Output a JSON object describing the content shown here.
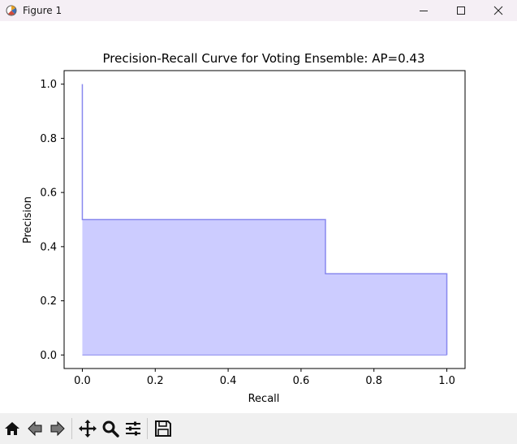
{
  "window": {
    "title": "Figure 1",
    "icons": [
      "matplotlib-icon",
      "minimize-icon",
      "maximize-icon",
      "close-icon"
    ]
  },
  "toolbar": {
    "icons": [
      "home-icon",
      "back-icon",
      "forward-icon",
      "pan-icon",
      "zoom-icon",
      "configure-subplots-icon",
      "save-icon"
    ]
  },
  "colors": {
    "fill": "#ccccff",
    "line": "#8888ee",
    "titlebar": "#f5eff5",
    "toolbar": "#f0f0f0"
  },
  "chart_data": {
    "type": "area",
    "title": "Precision-Recall Curve for Voting Ensemble: AP=0.43",
    "xlabel": "Recall",
    "ylabel": "Precision",
    "xlim": [
      -0.05,
      1.05
    ],
    "ylim": [
      -0.05,
      1.05
    ],
    "xticks": [
      0.0,
      0.2,
      0.4,
      0.6,
      0.8,
      1.0
    ],
    "xtick_labels": [
      "0.0",
      "0.2",
      "0.4",
      "0.6",
      "0.8",
      "1.0"
    ],
    "yticks": [
      0.0,
      0.2,
      0.4,
      0.6,
      0.8,
      1.0
    ],
    "ytick_labels": [
      "0.0",
      "0.2",
      "0.4",
      "0.6",
      "0.8",
      "1.0"
    ],
    "step": "post",
    "grid": false,
    "series": [
      {
        "recall": [
          0.0,
          0.0,
          0.667,
          0.667,
          1.0,
          1.0
        ],
        "precision": [
          1.0,
          0.5,
          0.5,
          0.3,
          0.3,
          0.0
        ]
      }
    ]
  }
}
